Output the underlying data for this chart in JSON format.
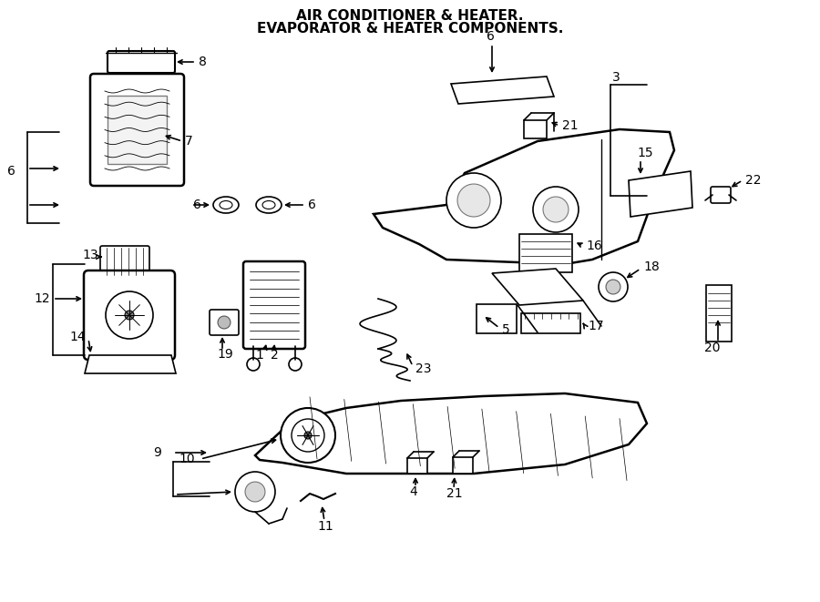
{
  "title1": "AIR CONDITIONER & HEATER.",
  "title2": "EVAPORATOR & HEATER COMPONENTS.",
  "bg": "#ffffff",
  "lc": "#000000",
  "fs_label": 10,
  "fs_title": 11
}
